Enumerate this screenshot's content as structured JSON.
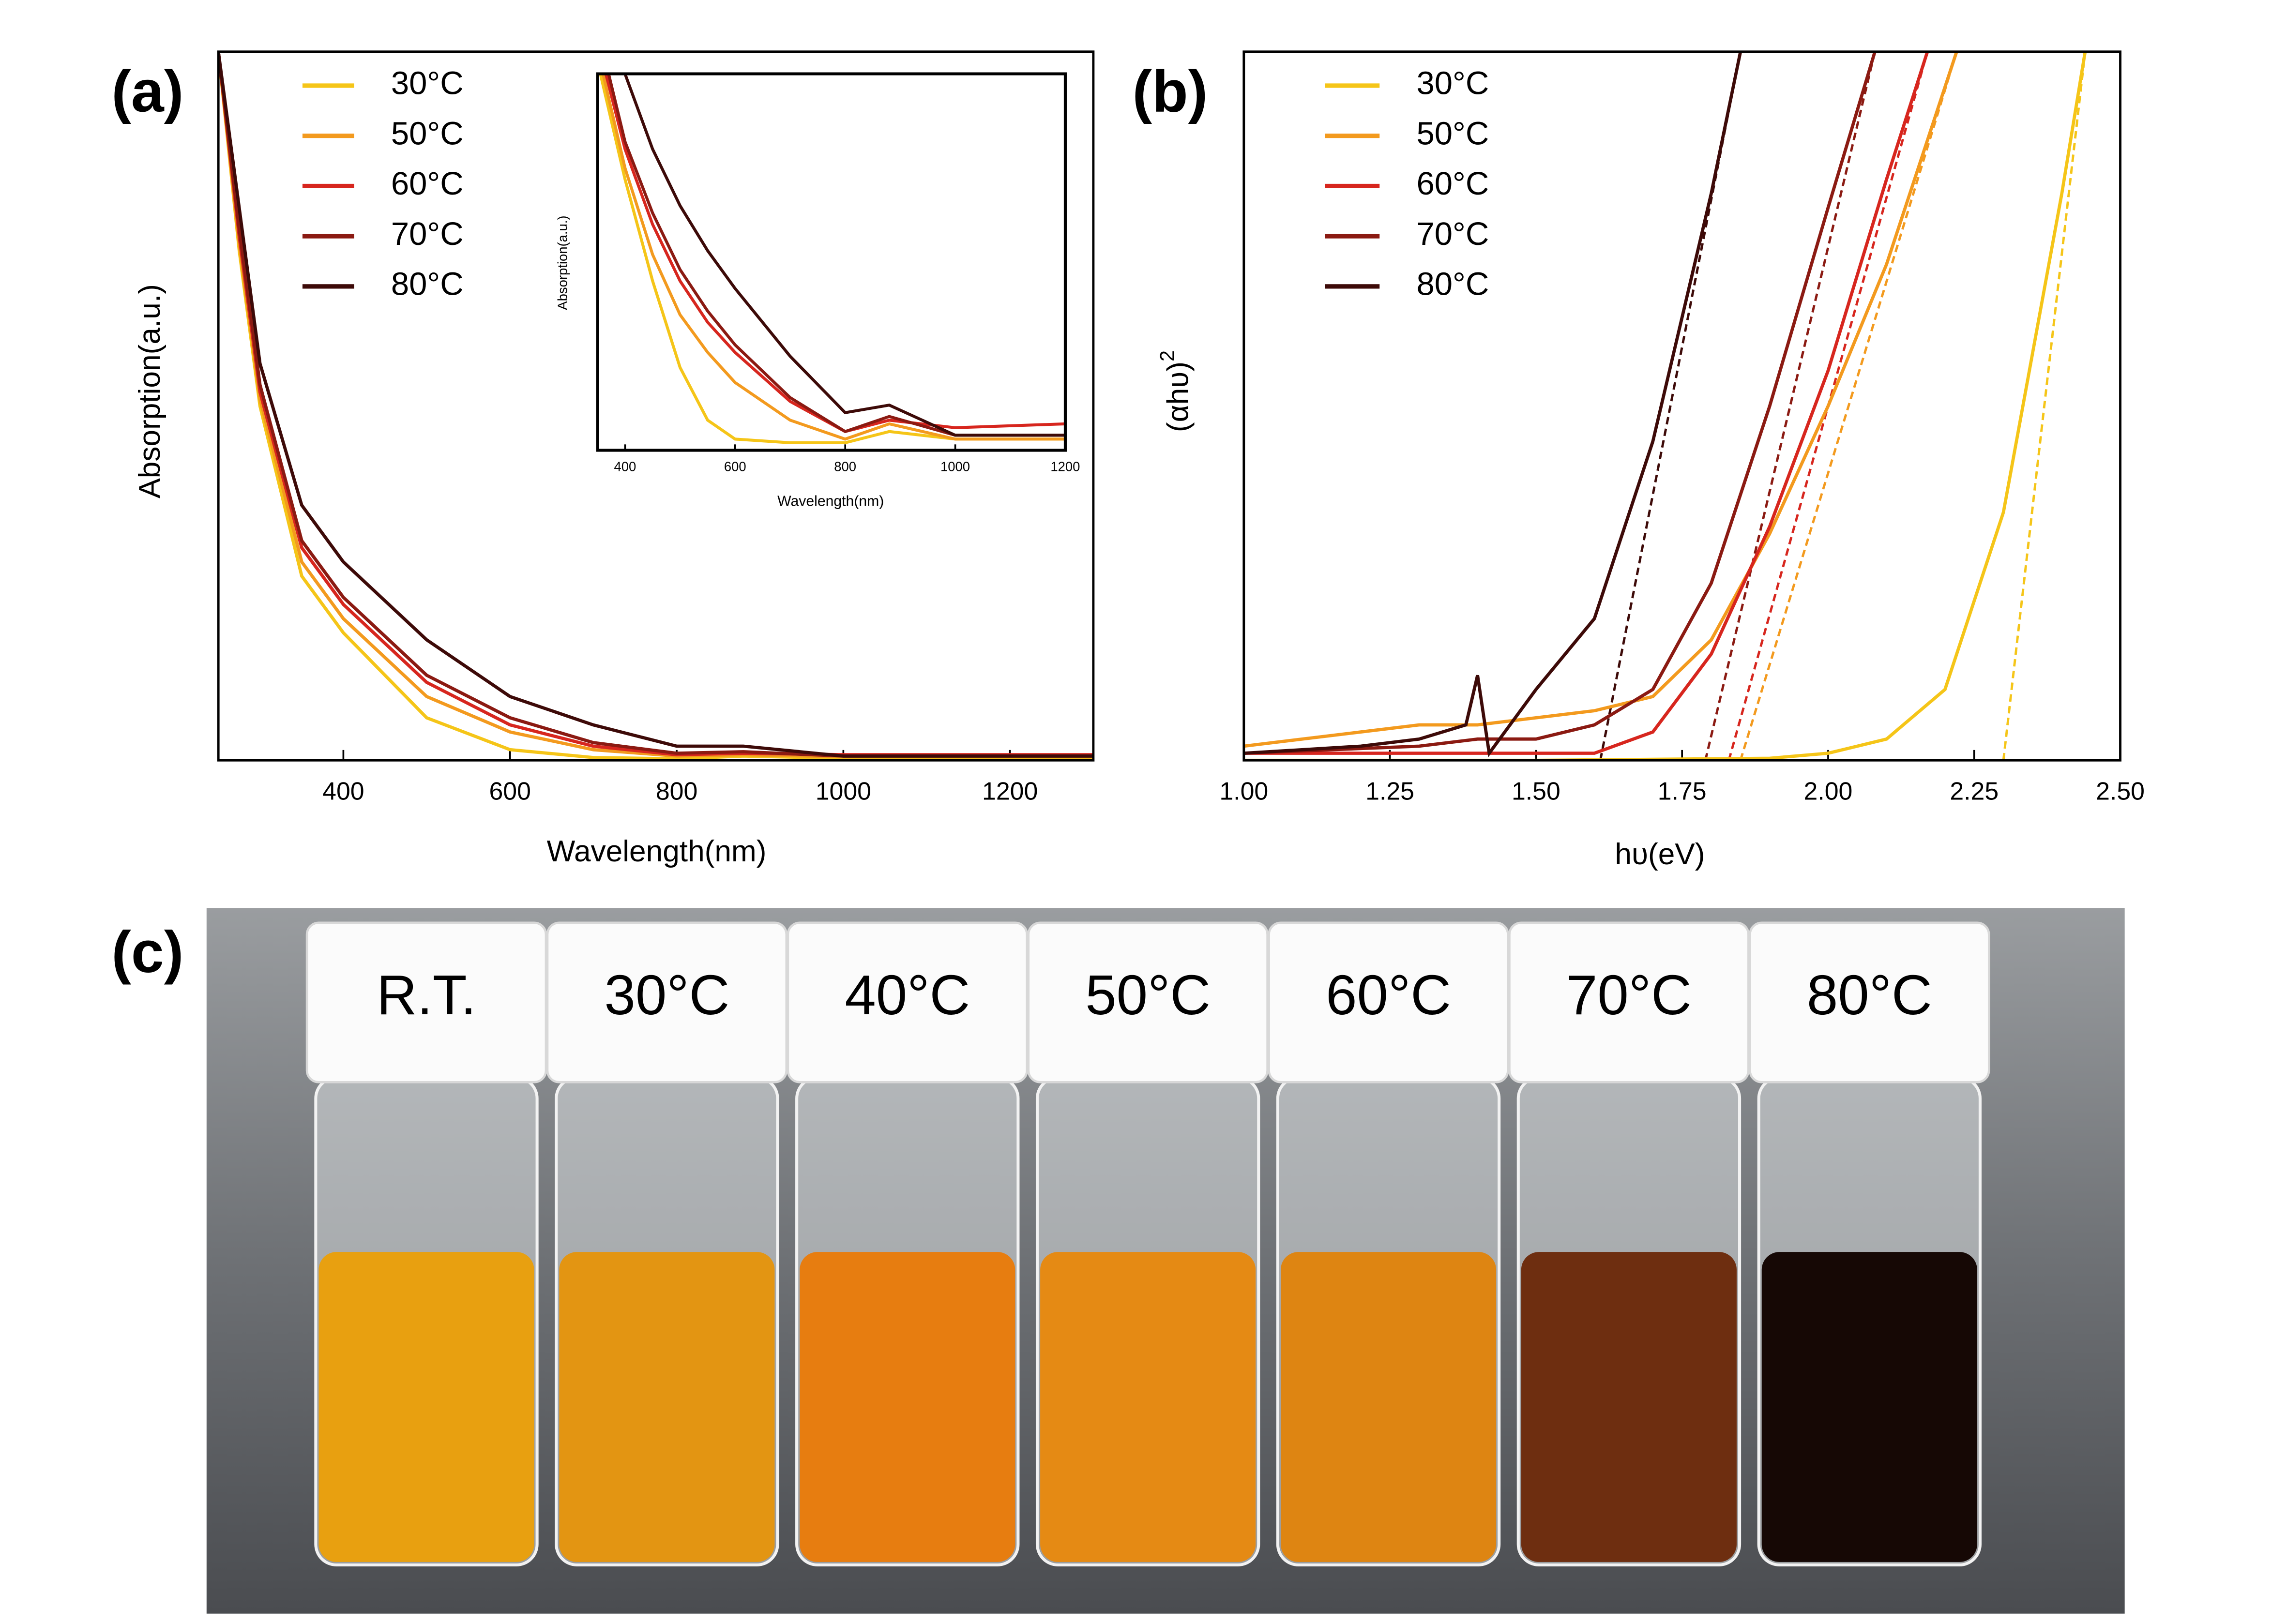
{
  "chart_data": [
    {
      "type": "line",
      "panel": "(a)",
      "xlabel": "Wavelength(nm)",
      "ylabel": "Absorption(a.u.)",
      "xlim": [
        250,
        1300
      ],
      "xticks": [
        400,
        600,
        800,
        1000,
        1200
      ],
      "ylim": [
        0,
        1
      ],
      "legend": "upper left",
      "series": [
        {
          "name": "30°C",
          "color": "#f5c518",
          "x": [
            250,
            275,
            300,
            350,
            400,
            500,
            600,
            700,
            800,
            880,
            1000,
            1300
          ],
          "values": [
            1.0,
            0.72,
            0.5,
            0.26,
            0.18,
            0.06,
            0.015,
            0.004,
            0.002,
            0.006,
            0.003,
            0.004
          ]
        },
        {
          "name": "50°C",
          "color": "#f39a1e",
          "x": [
            250,
            275,
            300,
            350,
            400,
            500,
            600,
            700,
            800,
            880,
            1000,
            1300
          ],
          "values": [
            1.0,
            0.73,
            0.51,
            0.28,
            0.2,
            0.09,
            0.04,
            0.015,
            0.006,
            0.008,
            0.005,
            0.005
          ]
        },
        {
          "name": "60°C",
          "color": "#d7261e",
          "x": [
            250,
            275,
            300,
            350,
            400,
            500,
            600,
            700,
            800,
            880,
            1000,
            1300
          ],
          "values": [
            1.0,
            0.74,
            0.52,
            0.3,
            0.22,
            0.11,
            0.05,
            0.02,
            0.008,
            0.01,
            0.008,
            0.008
          ]
        },
        {
          "name": "70°C",
          "color": "#8b1a12",
          "x": [
            250,
            275,
            300,
            350,
            400,
            500,
            600,
            700,
            800,
            880,
            1000,
            1300
          ],
          "values": [
            1.0,
            0.75,
            0.53,
            0.31,
            0.23,
            0.12,
            0.06,
            0.025,
            0.01,
            0.012,
            0.006,
            0.006
          ]
        },
        {
          "name": "80°C",
          "color": "#3d0a08",
          "x": [
            250,
            275,
            300,
            350,
            400,
            500,
            600,
            700,
            800,
            880,
            1000,
            1300
          ],
          "values": [
            1.0,
            0.78,
            0.56,
            0.36,
            0.28,
            0.17,
            0.09,
            0.05,
            0.02,
            0.02,
            0.006,
            0.006
          ]
        }
      ]
    },
    {
      "type": "line",
      "xlabel": "Wavelength(nm)",
      "ylabel": "Absorption(a.u.)",
      "xlim": [
        350,
        1200
      ],
      "xticks": [
        400,
        600,
        800,
        1000,
        1200
      ],
      "ylim": [
        0,
        1
      ],
      "series": [
        {
          "color": "#f5c518",
          "x": [
            355,
            400,
            450,
            500,
            550,
            600,
            700,
            800,
            880,
            1000,
            1200
          ],
          "values": [
            1.0,
            0.72,
            0.45,
            0.22,
            0.08,
            0.03,
            0.02,
            0.02,
            0.05,
            0.03,
            0.03
          ]
        },
        {
          "color": "#f39a1e",
          "x": [
            360,
            400,
            450,
            500,
            550,
            600,
            700,
            800,
            880,
            1000,
            1200
          ],
          "values": [
            1.0,
            0.75,
            0.52,
            0.36,
            0.26,
            0.18,
            0.08,
            0.03,
            0.07,
            0.03,
            0.03
          ]
        },
        {
          "color": "#d7261e",
          "x": [
            365,
            400,
            450,
            500,
            550,
            600,
            700,
            800,
            880,
            1000,
            1200
          ],
          "values": [
            1.0,
            0.8,
            0.6,
            0.45,
            0.34,
            0.26,
            0.13,
            0.05,
            0.08,
            0.06,
            0.07
          ]
        },
        {
          "color": "#8b1a12",
          "x": [
            370,
            400,
            450,
            500,
            550,
            600,
            700,
            800,
            880,
            1000,
            1200
          ],
          "values": [
            1.0,
            0.82,
            0.63,
            0.48,
            0.37,
            0.28,
            0.14,
            0.05,
            0.09,
            0.04,
            0.04
          ]
        },
        {
          "color": "#3d0a08",
          "x": [
            400,
            450,
            500,
            550,
            600,
            700,
            800,
            880,
            1000,
            1200
          ],
          "values": [
            1.0,
            0.8,
            0.65,
            0.53,
            0.43,
            0.25,
            0.1,
            0.12,
            0.04,
            0.04
          ]
        }
      ]
    },
    {
      "type": "line",
      "panel": "(b)",
      "xlabel": "hυ(eV)",
      "ylabel": "(αhυ)",
      "ylabel_sup": "2",
      "xlim": [
        1.0,
        2.5
      ],
      "xticks": [
        {
          "value": 1.0,
          "label": "1.00"
        },
        {
          "value": 1.25,
          "label": "1.25"
        },
        {
          "value": 1.5,
          "label": "1.50"
        },
        {
          "value": 1.75,
          "label": "1.75"
        },
        {
          "value": 2.0,
          "label": "2.00"
        },
        {
          "value": 2.25,
          "label": "2.25"
        },
        {
          "value": 2.5,
          "label": "2.50"
        }
      ],
      "ylim": [
        0,
        1
      ],
      "legend": "upper left",
      "series": [
        {
          "name": "30°C",
          "color": "#f5c518",
          "x": [
            1.0,
            1.5,
            1.9,
            2.0,
            2.1,
            2.2,
            2.3,
            2.4,
            2.44
          ],
          "values": [
            0,
            0,
            0.003,
            0.01,
            0.03,
            0.1,
            0.35,
            0.8,
            1.0
          ]
        },
        {
          "name": "50°C",
          "color": "#f39a1e",
          "x": [
            1.0,
            1.2,
            1.3,
            1.4,
            1.5,
            1.6,
            1.7,
            1.8,
            1.9,
            2.0,
            2.1,
            2.22
          ],
          "values": [
            0.02,
            0.04,
            0.05,
            0.05,
            0.06,
            0.07,
            0.09,
            0.17,
            0.32,
            0.5,
            0.7,
            1.0
          ]
        },
        {
          "name": "60°C",
          "color": "#d7261e",
          "x": [
            1.0,
            1.4,
            1.6,
            1.7,
            1.8,
            1.9,
            2.0,
            2.1,
            2.17
          ],
          "values": [
            0.01,
            0.01,
            0.01,
            0.04,
            0.15,
            0.33,
            0.55,
            0.82,
            1.0
          ]
        },
        {
          "name": "70°C",
          "color": "#8b1a12",
          "x": [
            1.0,
            1.3,
            1.4,
            1.5,
            1.6,
            1.7,
            1.8,
            1.9,
            2.0,
            2.08
          ],
          "values": [
            0.01,
            0.02,
            0.03,
            0.03,
            0.05,
            0.1,
            0.25,
            0.5,
            0.78,
            1.0
          ]
        },
        {
          "name": "80°C",
          "color": "#3d0a08",
          "x": [
            1.0,
            1.2,
            1.3,
            1.38,
            1.4,
            1.42,
            1.5,
            1.6,
            1.7,
            1.8,
            1.85
          ],
          "values": [
            0.01,
            0.02,
            0.03,
            0.05,
            0.12,
            0.01,
            0.1,
            0.2,
            0.45,
            0.8,
            1.0
          ]
        }
      ],
      "fits": [
        {
          "color": "#f5c518",
          "x": [
            2.3,
            2.44
          ],
          "values": [
            0,
            1
          ]
        },
        {
          "color": "#f39a1e",
          "x": [
            1.85,
            2.22
          ],
          "values": [
            0,
            1
          ]
        },
        {
          "color": "#d7261e",
          "x": [
            1.83,
            2.17
          ],
          "values": [
            0,
            1
          ]
        },
        {
          "color": "#8b1a12",
          "x": [
            1.79,
            2.08
          ],
          "values": [
            0,
            1
          ]
        },
        {
          "color": "#3d0a08",
          "x": [
            1.61,
            1.85
          ],
          "values": [
            0,
            1
          ]
        }
      ]
    }
  ],
  "photo": {
    "panel": "(c)",
    "vials": [
      {
        "label": "R.T.",
        "color": "#e8a010"
      },
      {
        "label": "30°C",
        "color": "#e39512"
      },
      {
        "label": "40°C",
        "color": "#e77d10"
      },
      {
        "label": "50°C",
        "color": "#e58a14"
      },
      {
        "label": "60°C",
        "color": "#de8512"
      },
      {
        "label": "70°C",
        "color": "#6e2e10"
      },
      {
        "label": "80°C",
        "color": "#160805"
      }
    ]
  }
}
